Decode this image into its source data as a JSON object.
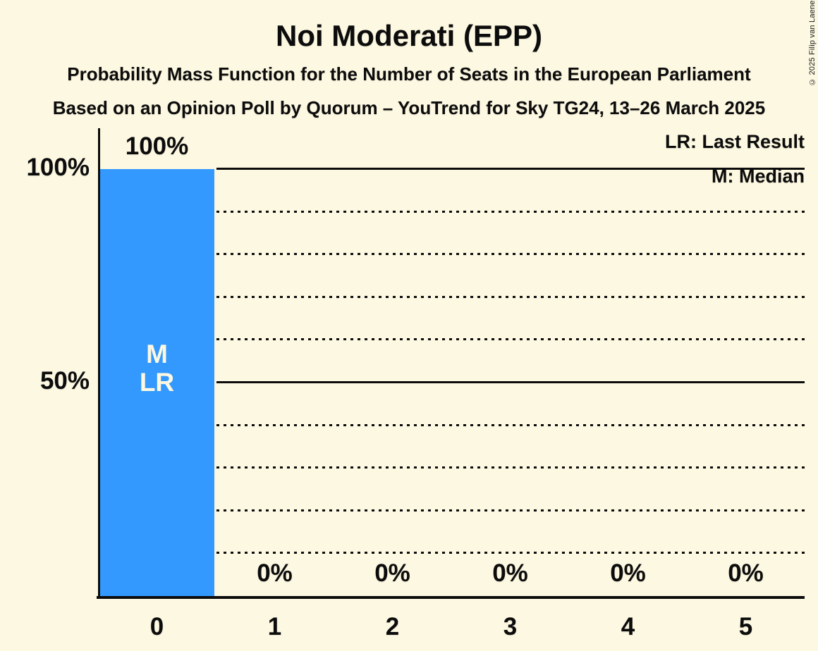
{
  "header": {
    "title": "Noi Moderati (EPP)",
    "subtitle1": "Probability Mass Function for the Number of Seats in the European Parliament",
    "subtitle2": "Based on an Opinion Poll by Quorum – YouTrend for Sky TG24, 13–26 March 2025"
  },
  "copyright": "© 2025 Filip van Laenen",
  "legend": {
    "lr": "LR: Last Result",
    "m": "M: Median"
  },
  "colors": {
    "background": "#FDF8E2",
    "bar": "#3399FF",
    "text": "#0C0C0C",
    "bar_text": "#FDF8E2"
  },
  "chart_data": {
    "type": "bar",
    "title": "Noi Moderati (EPP)",
    "categories": [
      "0",
      "1",
      "2",
      "3",
      "4",
      "5"
    ],
    "values": [
      100,
      0,
      0,
      0,
      0,
      0
    ],
    "value_labels": [
      "100%",
      "0%",
      "0%",
      "0%",
      "0%",
      "0%"
    ],
    "xlabel": "",
    "ylabel": "",
    "ylim": [
      0,
      100
    ],
    "y_ticks": [
      {
        "value": 100,
        "label": "100%"
      },
      {
        "value": 50,
        "label": "50%"
      }
    ],
    "gridlines": {
      "dotted_every_percent": 10,
      "solid_at_percent": [
        50,
        100
      ]
    },
    "legend_entries": [
      "LR: Last Result",
      "M: Median"
    ],
    "legend_position": "top-right",
    "annotations": [
      {
        "category": "0",
        "lines": [
          "M",
          "LR"
        ],
        "meaning": "Median and Last Result at 0 seats"
      }
    ],
    "median_seats": 0,
    "last_result_seats": 0
  }
}
